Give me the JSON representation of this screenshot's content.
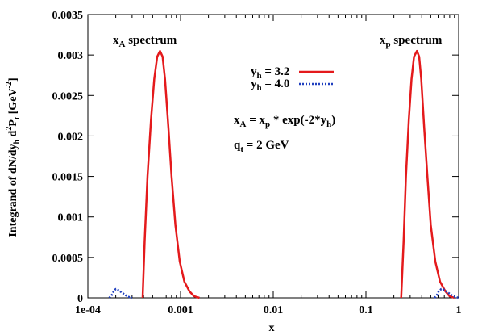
{
  "chart_data": {
    "type": "line",
    "x_scale": "log",
    "xlim": [
      0.0001,
      1
    ],
    "ylim": [
      0,
      0.0035
    ],
    "xlabel": "x",
    "ylabel": {
      "parts": [
        "Integrand of dN/dy",
        "h",
        " d",
        "2",
        "P",
        "t",
        " [GeV",
        "-2",
        "]"
      ]
    },
    "x_ticks": [
      {
        "value": 0.0001,
        "label": "1e-04"
      },
      {
        "value": 0.001,
        "label": "0.001"
      },
      {
        "value": 0.01,
        "label": "0.01"
      },
      {
        "value": 0.1,
        "label": "0.1"
      },
      {
        "value": 1,
        "label": "1"
      }
    ],
    "y_ticks": [
      {
        "value": 0,
        "label": "0"
      },
      {
        "value": 0.0005,
        "label": "0.0005"
      },
      {
        "value": 0.001,
        "label": "0.001"
      },
      {
        "value": 0.0015,
        "label": "0.0015"
      },
      {
        "value": 0.002,
        "label": "0.002"
      },
      {
        "value": 0.0025,
        "label": "0.0025"
      },
      {
        "value": 0.003,
        "label": "0.003"
      },
      {
        "value": 0.0035,
        "label": "0.0035"
      }
    ],
    "series": [
      {
        "name": "y_h = 3.2",
        "label_parts": [
          "y",
          "h",
          " = 3.2"
        ],
        "color": "#e41a1c",
        "dash": "solid",
        "curves": [
          [
            [
              0.00039,
              0
            ],
            [
              0.00041,
              0.0007
            ],
            [
              0.00044,
              0.0015
            ],
            [
              0.00048,
              0.0022
            ],
            [
              0.00052,
              0.0027
            ],
            [
              0.00056,
              0.00298
            ],
            [
              0.0006,
              0.00305
            ],
            [
              0.00064,
              0.00298
            ],
            [
              0.00068,
              0.0027
            ],
            [
              0.00074,
              0.0021
            ],
            [
              0.0008,
              0.0015
            ],
            [
              0.00088,
              0.0009
            ],
            [
              0.00098,
              0.00045
            ],
            [
              0.0011,
              0.0002
            ],
            [
              0.00125,
              8e-05
            ],
            [
              0.0014,
              2e-05
            ],
            [
              0.0016,
              0
            ]
          ],
          [
            [
              0.24,
              0
            ],
            [
              0.255,
              0.0007
            ],
            [
              0.27,
              0.0015
            ],
            [
              0.29,
              0.0022
            ],
            [
              0.31,
              0.0027
            ],
            [
              0.33,
              0.00298
            ],
            [
              0.355,
              0.00305
            ],
            [
              0.375,
              0.00298
            ],
            [
              0.395,
              0.0027
            ],
            [
              0.425,
              0.0021
            ],
            [
              0.46,
              0.0015
            ],
            [
              0.5,
              0.0009
            ],
            [
              0.56,
              0.00045
            ],
            [
              0.63,
              0.0002
            ],
            [
              0.72,
              8e-05
            ],
            [
              0.8,
              2e-05
            ],
            [
              0.9,
              0
            ]
          ]
        ]
      },
      {
        "name": "y_h = 4.0",
        "label_parts": [
          "y",
          "h",
          " = 4.0"
        ],
        "color": "#1f3fbf",
        "dash": "dotted",
        "curves": [
          [
            [
              0.00017,
              0
            ],
            [
              0.00018,
              3e-05
            ],
            [
              0.00019,
              8e-05
            ],
            [
              0.0002,
              0.00011
            ],
            [
              0.00021,
              0.0001
            ],
            [
              0.00023,
              7e-05
            ],
            [
              0.00025,
              4e-05
            ],
            [
              0.00027,
              1.5e-05
            ],
            [
              0.0003,
              0
            ]
          ],
          [
            [
              0.55,
              0
            ],
            [
              0.58,
              3e-05
            ],
            [
              0.61,
              8e-05
            ],
            [
              0.65,
              0.00011
            ],
            [
              0.7,
              0.0001
            ],
            [
              0.76,
              7e-05
            ],
            [
              0.82,
              4e-05
            ],
            [
              0.9,
              1.5e-05
            ],
            [
              1.0,
              0
            ]
          ]
        ]
      }
    ],
    "annotations": {
      "xa_spectrum": {
        "main": "x",
        "sub": "A",
        "rest": " spectrum"
      },
      "xp_spectrum": {
        "main": "x",
        "sub": "p",
        "rest": " spectrum"
      },
      "formula": {
        "p1": "x",
        "s1": "A",
        "p2": " = x",
        "s2": "p",
        "p3": " * exp(-2*y",
        "s3": "h",
        "p4": ")"
      },
      "qt": {
        "p1": "q",
        "s1": "t",
        "p2": " = 2 GeV"
      }
    },
    "grid": false,
    "legend_position": "top-center"
  }
}
